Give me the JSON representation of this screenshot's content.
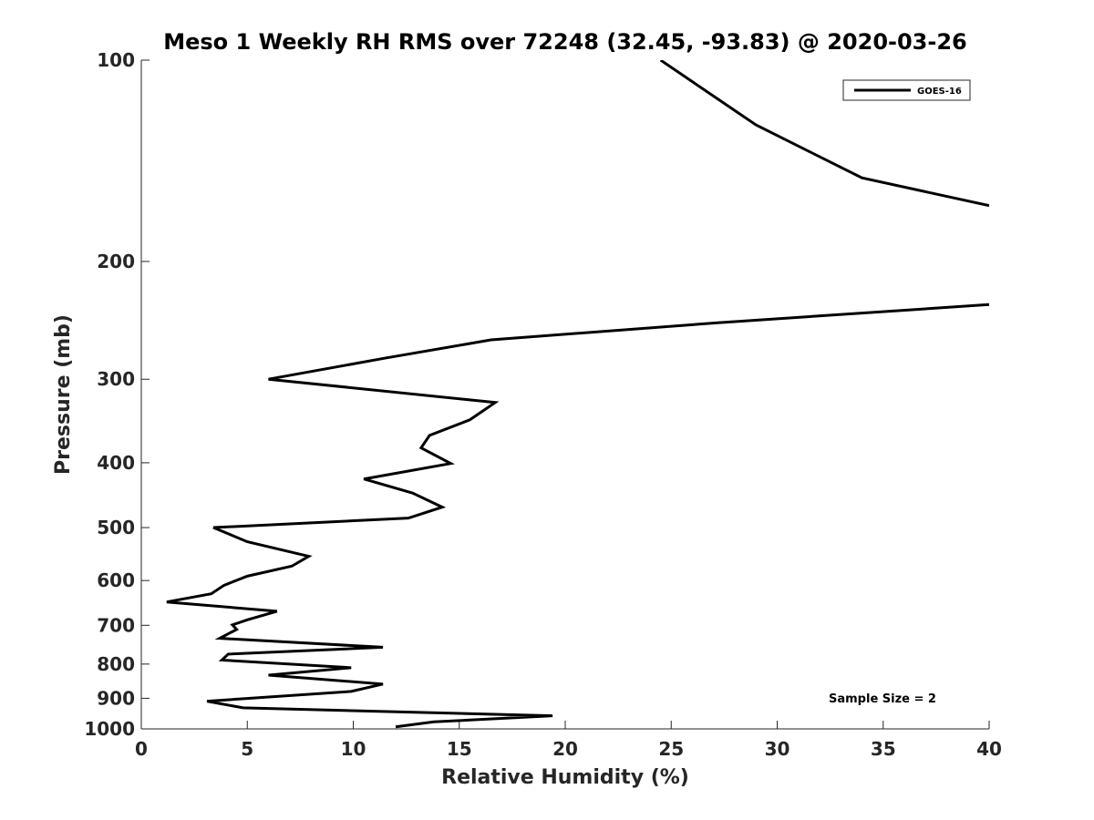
{
  "chart_data": {
    "type": "line",
    "title": "Meso 1 Weekly RH RMS over 72248 (32.45, -93.83) @ 2020-03-26",
    "xlabel": "Relative Humidity (%)",
    "ylabel": "Pressure (mb)",
    "xlim": [
      0,
      40
    ],
    "ylim": [
      100,
      1000
    ],
    "y_scale": "log",
    "y_reversed": true,
    "x_ticks": [
      "0",
      "5",
      "10",
      "15",
      "20",
      "25",
      "30",
      "35",
      "40"
    ],
    "y_ticks": [
      "100",
      "200",
      "300",
      "400",
      "500",
      "600",
      "700",
      "800",
      "900",
      "1000"
    ],
    "legend_position": "top-right",
    "annotation": "Sample Size = 2",
    "grid": false,
    "series": [
      {
        "name": "GOES-16",
        "color": "#000000",
        "segments": [
          {
            "x": [
              24.5,
              29.0,
              34.0,
              40.0
            ],
            "y": [
              100,
              125,
              150,
              165
            ]
          },
          {
            "x": [
              40.0,
              27.2,
              16.5,
              11.5,
              6.0,
              16.7,
              15.5,
              13.6,
              13.2,
              14.6,
              10.5,
              12.8,
              14.2,
              12.6,
              3.4,
              5.0,
              7.9,
              7.1,
              5.0,
              3.9,
              3.3,
              1.2,
              6.4,
              5.0,
              4.3,
              4.5,
              3.7,
              11.4,
              4.1,
              3.8,
              9.9,
              6.0,
              11.4,
              9.9,
              3.1,
              4.8,
              19.4,
              13.8,
              12.0
            ],
            "y": [
              232,
              247,
              262,
              279,
              300,
              325,
              345,
              364,
              380,
              401,
              423,
              444,
              466,
              484,
              500,
              525,
              552,
              571,
              591,
              610,
              628,
              646,
              667,
              687,
              699,
              710,
              732,
              755,
              773,
              789,
              810,
              831,
              857,
              879,
              909,
              930,
              956,
              976,
              993
            ]
          }
        ]
      }
    ]
  }
}
